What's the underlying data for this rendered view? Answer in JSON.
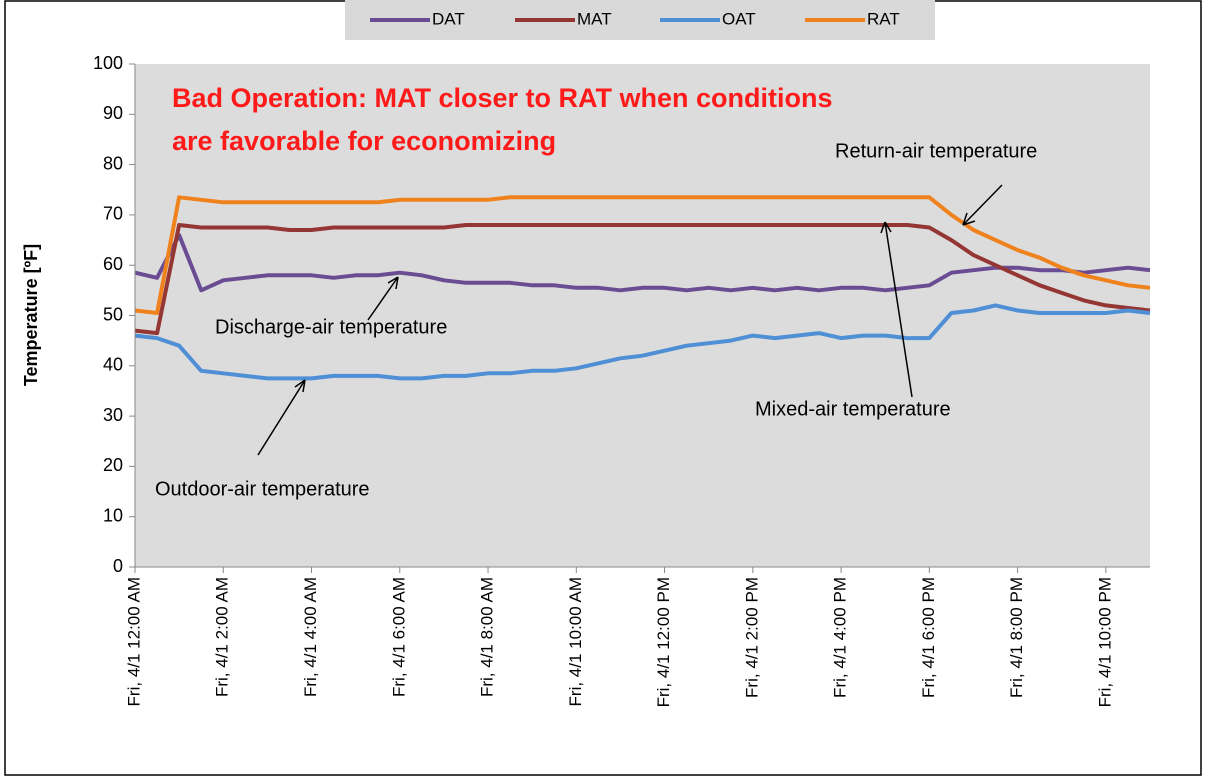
{
  "chart_data": {
    "type": "line",
    "title": [
      "Bad Operation: MAT closer to RAT when conditions",
      "are favorable for economizing"
    ],
    "y_label": "Temperature [ºF]",
    "annotations": [
      "Return-air temperature",
      "Discharge-air temperature",
      "Mixed-air temperature",
      "Outdoor-air temperature"
    ],
    "categories": [
      "Fri, 4/1 12:00 AM",
      null,
      null,
      null,
      "Fri, 4/1 2:00 AM",
      null,
      null,
      null,
      "Fri, 4/1 4:00 AM",
      null,
      null,
      null,
      "Fri, 4/1 6:00 AM",
      null,
      null,
      null,
      "Fri, 4/1 8:00 AM",
      null,
      null,
      null,
      "Fri, 4/1 10:00 AM",
      null,
      null,
      null,
      "Fri, 4/1 12:00 PM",
      null,
      null,
      null,
      "Fri, 4/1 2:00 PM",
      null,
      null,
      null,
      "Fri, 4/1 4:00 PM",
      null,
      null,
      null,
      "Fri, 4/1 6:00 PM",
      null,
      null,
      null,
      "Fri, 4/1 8:00 PM",
      null,
      null,
      null,
      "Fri, 4/1 10:00 PM",
      null,
      null
    ],
    "series": [
      {
        "name": "DAT",
        "color": "#6a4c93",
        "values": [
          58.5,
          57.5,
          66,
          55,
          57,
          57.5,
          58,
          58,
          58,
          57.5,
          58,
          58,
          58.5,
          58,
          57,
          56.5,
          56.5,
          56.5,
          56,
          56,
          55.5,
          55.5,
          55,
          55.5,
          55.5,
          55,
          55.5,
          55,
          55.5,
          55,
          55.5,
          55,
          55.5,
          55.5,
          55,
          55.5,
          56,
          58.5,
          59,
          59.5,
          59.5,
          59,
          59,
          58.5,
          59,
          59.5,
          59
        ]
      },
      {
        "name": "MAT",
        "color": "#943634",
        "values": [
          47,
          46.5,
          68,
          67.5,
          67.5,
          67.5,
          67.5,
          67,
          67,
          67.5,
          67.5,
          67.5,
          67.5,
          67.5,
          67.5,
          68,
          68,
          68,
          68,
          68,
          68,
          68,
          68,
          68,
          68,
          68,
          68,
          68,
          68,
          68,
          68,
          68,
          68,
          68,
          68,
          68,
          67.5,
          65,
          62,
          60,
          58,
          56,
          54.5,
          53,
          52,
          51.5,
          51
        ]
      },
      {
        "name": "OAT",
        "color": "#4f8fd6",
        "values": [
          46,
          45.5,
          44,
          39,
          38.5,
          38,
          37.5,
          37.5,
          37.5,
          38,
          38,
          38,
          37.5,
          37.5,
          38,
          38,
          38.5,
          38.5,
          39,
          39,
          39.5,
          40.5,
          41.5,
          42,
          43,
          44,
          44.5,
          45,
          46,
          45.5,
          46,
          46.5,
          45.5,
          46,
          46,
          45.5,
          45.5,
          50.5,
          51,
          52,
          51,
          50.5,
          50.5,
          50.5,
          50.5,
          51,
          50.5
        ]
      },
      {
        "name": "RAT",
        "color": "#f0821e",
        "values": [
          51,
          50.5,
          73.5,
          73,
          72.5,
          72.5,
          72.5,
          72.5,
          72.5,
          72.5,
          72.5,
          72.5,
          73,
          73,
          73,
          73,
          73,
          73.5,
          73.5,
          73.5,
          73.5,
          73.5,
          73.5,
          73.5,
          73.5,
          73.5,
          73.5,
          73.5,
          73.5,
          73.5,
          73.5,
          73.5,
          73.5,
          73.5,
          73.5,
          73.5,
          73.5,
          70,
          67,
          65,
          63,
          61.5,
          59.5,
          58,
          57,
          56,
          55.5
        ]
      }
    ],
    "ylim": [
      0,
      100
    ],
    "yticks": [
      0,
      10,
      20,
      30,
      40,
      50,
      60,
      70,
      80,
      90,
      100
    ],
    "grid": false,
    "legend": "top"
  }
}
